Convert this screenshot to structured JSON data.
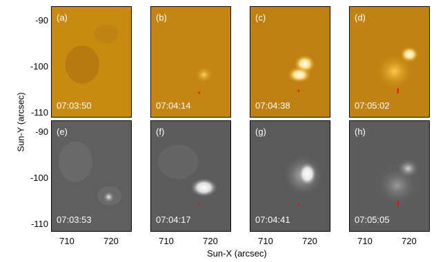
{
  "figure": {
    "ylabel": "Sun-Y (arcsec)",
    "xlabel": "Sun-X (arcsec)",
    "yticks_top": [
      "-90",
      "-100",
      "-110"
    ],
    "yticks_bottom": [
      "-90",
      "-100",
      "-110"
    ],
    "xticks": [
      "710",
      "720"
    ],
    "top_row_color": "#c98a12",
    "bottom_row_color": "#6a6a6a",
    "marker_color": "#ff0000"
  },
  "panels": [
    {
      "label": "(a)",
      "time": "07:03:50"
    },
    {
      "label": "(b)",
      "time": "07:04:14"
    },
    {
      "label": "(c)",
      "time": "07:04:38"
    },
    {
      "label": "(d)",
      "time": "07:05:02"
    },
    {
      "label": "(e)",
      "time": "07:03:53"
    },
    {
      "label": "(f)",
      "time": "07:04:17"
    },
    {
      "label": "(g)",
      "time": "07:04:41"
    },
    {
      "label": "(h)",
      "time": "07:05:05"
    }
  ]
}
